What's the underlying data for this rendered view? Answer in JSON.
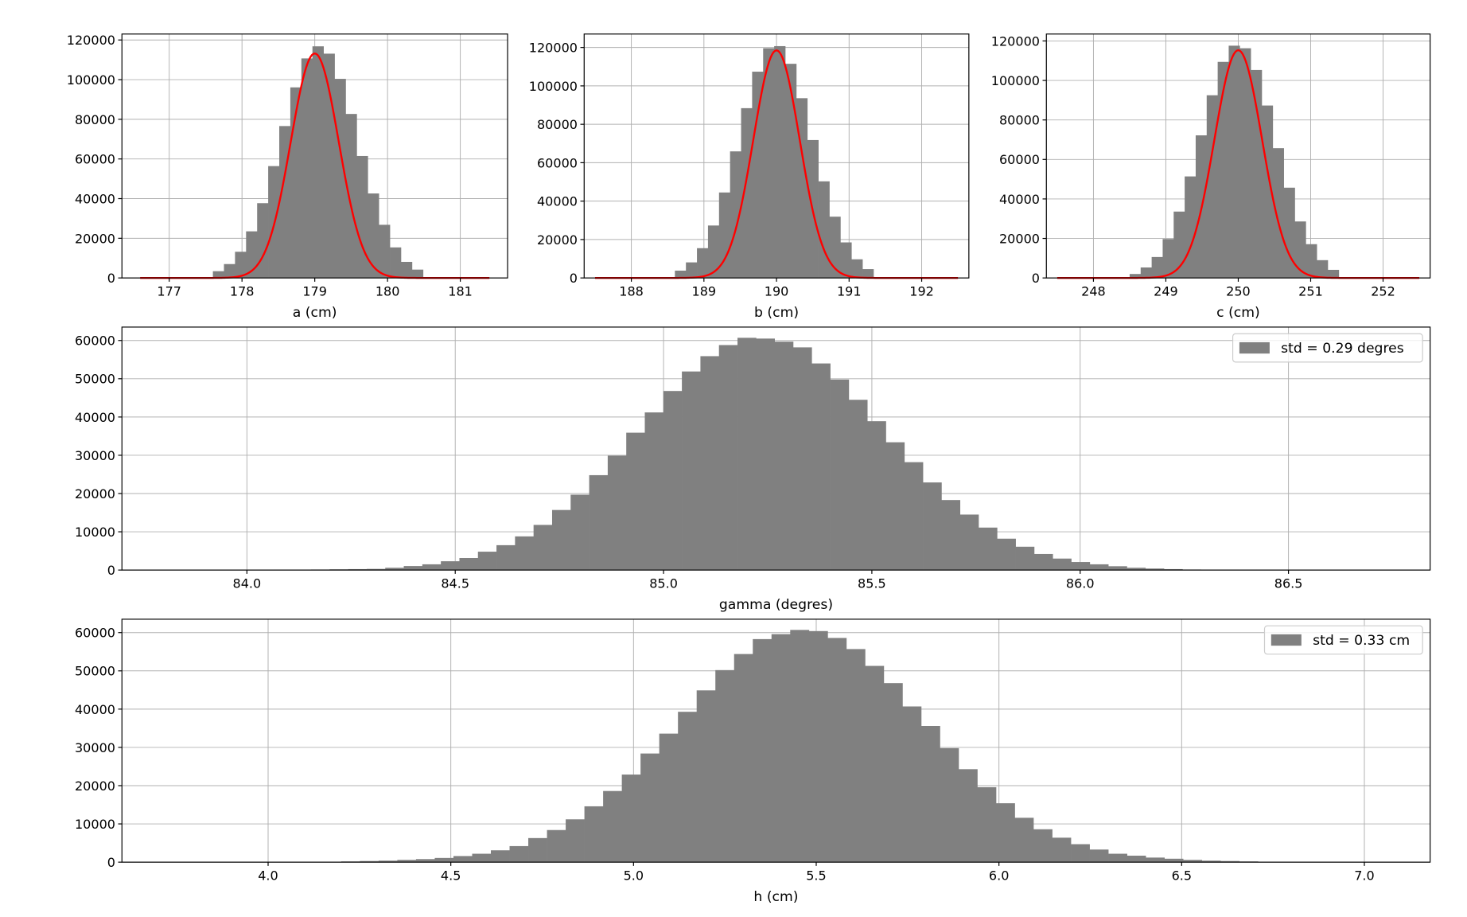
{
  "figure": {
    "background": "#ffffff",
    "bar_color": "#808080",
    "fit_color": "#ff0000",
    "grid_color": "#b0b0b0"
  },
  "chart_data": [
    {
      "id": "a",
      "type": "bar",
      "title": "",
      "xlabel": "a (cm)",
      "ylabel": "",
      "grid": true,
      "xlim": [
        176.35,
        181.65
      ],
      "ylim": [
        0,
        123000
      ],
      "xticks": [
        177,
        178,
        179,
        180,
        181
      ],
      "yticks": [
        0,
        20000,
        40000,
        60000,
        80000,
        100000,
        120000
      ],
      "bin_width": 0.152,
      "bin_start": 177.6,
      "values": [
        3400,
        7000,
        13200,
        23500,
        37700,
        56400,
        76600,
        96100,
        110700,
        116800,
        113100,
        100400,
        82700,
        61500,
        42600,
        26800,
        15400,
        8100,
        4200
      ],
      "fit": {
        "type": "gaussian",
        "mean": 179.0,
        "std": 0.33,
        "peak": 113200,
        "x_range": [
          176.6,
          181.4
        ]
      },
      "legend": null
    },
    {
      "id": "b",
      "type": "bar",
      "title": "",
      "xlabel": "b (cm)",
      "ylabel": "",
      "grid": true,
      "xlim": [
        187.35,
        192.65
      ],
      "ylim": [
        0,
        127000
      ],
      "xticks": [
        188,
        189,
        190,
        191,
        192
      ],
      "yticks": [
        0,
        20000,
        40000,
        60000,
        80000,
        100000,
        120000
      ],
      "bin_width": 0.152,
      "bin_start": 188.6,
      "values": [
        3800,
        8100,
        15500,
        27300,
        44500,
        65900,
        88400,
        107400,
        119600,
        120700,
        111500,
        93600,
        71800,
        50300,
        31900,
        18500,
        9700,
        4600
      ],
      "fit": {
        "type": "gaussian",
        "mean": 190.0,
        "std": 0.32,
        "peak": 118500,
        "x_range": [
          187.5,
          192.5
        ]
      },
      "legend": null
    },
    {
      "id": "c",
      "type": "bar",
      "title": "",
      "xlabel": "c (cm)",
      "ylabel": "",
      "grid": true,
      "xlim": [
        247.35,
        252.65
      ],
      "ylim": [
        0,
        123500
      ],
      "xticks": [
        248,
        249,
        250,
        251,
        252
      ],
      "yticks": [
        0,
        20000,
        40000,
        60000,
        80000,
        100000,
        120000
      ],
      "bin_width": 0.152,
      "bin_start": 248.5,
      "values": [
        2000,
        5300,
        10600,
        19700,
        33600,
        51400,
        72200,
        92500,
        109400,
        117600,
        116300,
        105300,
        87300,
        65700,
        45700,
        28600,
        17100,
        9000,
        4100
      ],
      "fit": {
        "type": "gaussian",
        "mean": 250.0,
        "std": 0.33,
        "peak": 115300,
        "x_range": [
          247.5,
          252.5
        ]
      },
      "legend": null
    },
    {
      "id": "gamma",
      "type": "bar",
      "title": "",
      "xlabel": "gamma (degres)",
      "ylabel": "",
      "grid": true,
      "xlim": [
        83.7,
        86.84
      ],
      "ylim": [
        0,
        63500
      ],
      "xticks": [
        84.0,
        84.5,
        85.0,
        85.5,
        86.0,
        86.5
      ],
      "xtick_labels": [
        "84.0",
        "84.5",
        "85.0",
        "85.5",
        "86.0",
        "86.5"
      ],
      "yticks": [
        0,
        10000,
        20000,
        30000,
        40000,
        50000,
        60000
      ],
      "bin_width": 0.0445,
      "bin_start": 84.065,
      "values": [
        100,
        120,
        150,
        200,
        250,
        300,
        600,
        1050,
        1500,
        2300,
        3150,
        4800,
        6500,
        8800,
        11800,
        15700,
        19700,
        24800,
        29900,
        35900,
        41200,
        46800,
        51900,
        55900,
        58800,
        60700,
        60500,
        59700,
        58200,
        54000,
        49800,
        44500,
        38900,
        33400,
        28200,
        22900,
        18300,
        14500,
        11100,
        8200,
        6100,
        4200,
        3000,
        2100,
        1500,
        1000,
        600,
        400,
        250,
        150,
        100,
        80,
        60,
        50,
        40
      ],
      "legend": {
        "label": "std = 0.29 degres",
        "position": "upper right"
      }
    },
    {
      "id": "h",
      "type": "bar",
      "title": "",
      "xlabel": "h (cm)",
      "ylabel": "",
      "grid": true,
      "xlim": [
        3.6,
        7.18
      ],
      "ylim": [
        0,
        63500
      ],
      "xticks": [
        4.0,
        4.5,
        5.0,
        5.5,
        6.0,
        6.5,
        7.0
      ],
      "xtick_labels": [
        "4.0",
        "4.5",
        "5.0",
        "5.5",
        "6.0",
        "6.5",
        "7.0"
      ],
      "yticks": [
        0,
        10000,
        20000,
        30000,
        40000,
        50000,
        60000
      ],
      "bin_width": 0.0512,
      "bin_start": 4.2,
      "values": [
        200,
        300,
        400,
        600,
        800,
        1100,
        1600,
        2200,
        3100,
        4200,
        6300,
        8400,
        11200,
        14600,
        18600,
        22900,
        28400,
        33600,
        39300,
        44900,
        50200,
        54400,
        58300,
        59600,
        60700,
        60400,
        58600,
        55700,
        51300,
        46800,
        40700,
        35600,
        29800,
        24300,
        19600,
        15400,
        11600,
        8600,
        6400,
        4700,
        3300,
        2200,
        1700,
        1200,
        900,
        600,
        400,
        300,
        200,
        100
      ],
      "legend": {
        "label": "std = 0.33 cm",
        "position": "upper right"
      }
    }
  ]
}
